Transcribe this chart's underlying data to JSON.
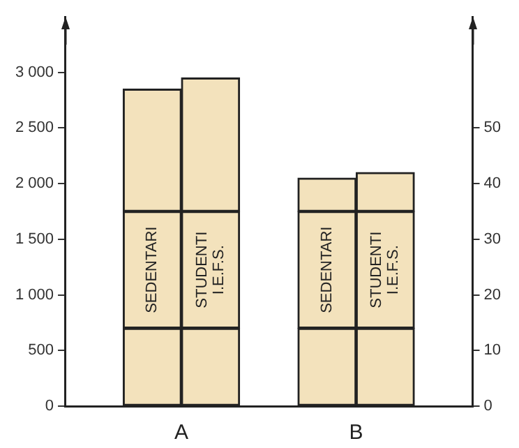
{
  "chart_data": {
    "type": "bar",
    "categories": [
      "SEDENTARI",
      "STUDENTI I.E.F.S.",
      "SEDENTARI",
      "STUDENTI I.E.F.S."
    ],
    "stacked": true,
    "series": [
      {
        "color": "#f3e2bc",
        "values": [
          700,
          700,
          700,
          700
        ]
      },
      {
        "color": "#f3e2bc",
        "values": [
          1050,
          1050,
          1050,
          1050
        ]
      },
      {
        "color": "#f3e2bc",
        "values": [
          1100,
          1200,
          300,
          350
        ]
      }
    ],
    "annotations": [
      "A",
      "B"
    ],
    "ylim": [
      0,
      3500
    ],
    "yticks": [
      0,
      500,
      {
        "value": 1000,
        "label": "1 000"
      },
      {
        "value": 1500,
        "label": "1 500"
      },
      {
        "value": 2000,
        "label": "2 000"
      },
      {
        "value": 2500,
        "label": "2 500"
      },
      {
        "value": 3000,
        "label": "3 000"
      }
    ],
    "y2lim": [
      0,
      70
    ],
    "y2ticks": [
      0,
      10,
      20,
      30,
      40,
      50
    ],
    "grid": false,
    "legend": false
  }
}
